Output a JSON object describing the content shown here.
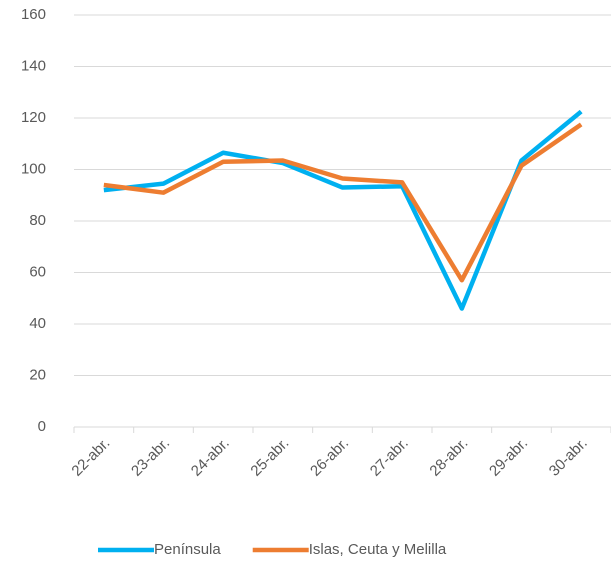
{
  "chart_data": {
    "type": "line",
    "categories": [
      "22-abr.",
      "23-abr.",
      "24-abr.",
      "25-abr.",
      "26-abr.",
      "27-abr.",
      "28-abr.",
      "29-abr.",
      "30-abr."
    ],
    "series": [
      {
        "name": "Península",
        "color": "#00b0f0",
        "values": [
          92,
          94.5,
          106.5,
          102.5,
          93,
          93.5,
          46,
          103.5,
          122.5
        ]
      },
      {
        "name": "Islas, Ceuta y Melilla",
        "color": "#ed7d31",
        "values": [
          94,
          91,
          103,
          103.5,
          96.5,
          95,
          57,
          101.5,
          117.5
        ]
      }
    ],
    "ylim": [
      0,
      160
    ],
    "yticks": [
      0,
      20,
      40,
      60,
      80,
      100,
      120,
      140,
      160
    ],
    "grid": true,
    "legend": "bottom"
  }
}
